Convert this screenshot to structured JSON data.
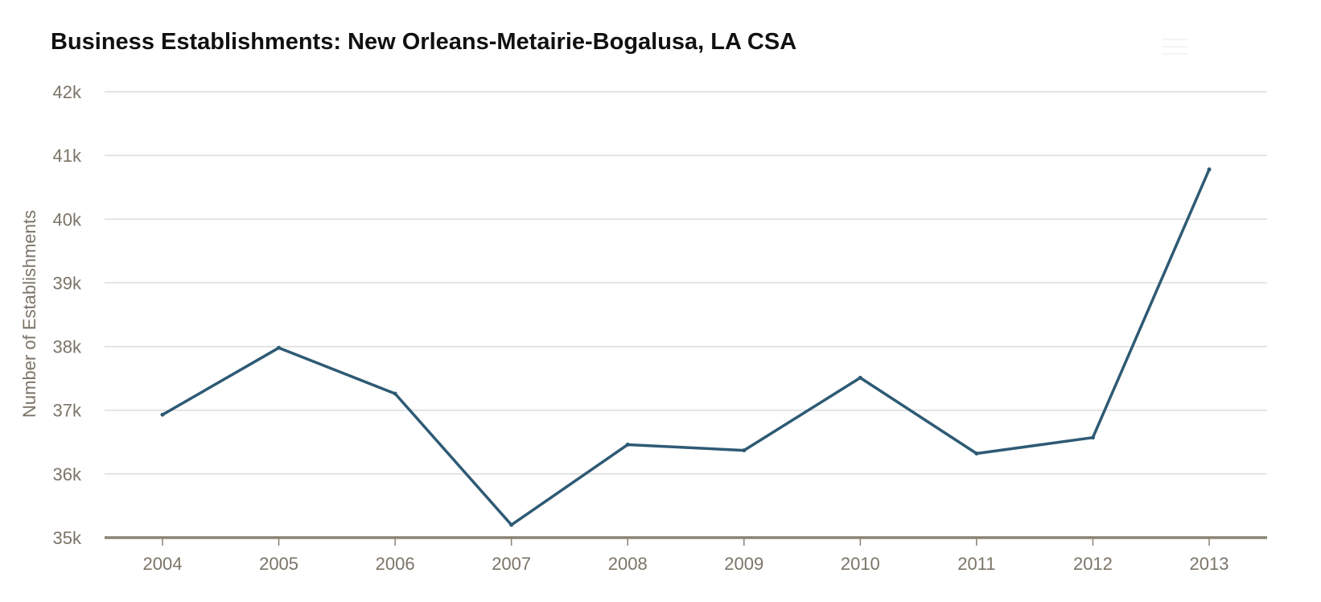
{
  "chart_data": {
    "type": "line",
    "title": "Business Establishments: New Orleans-Metairie-Bogalusa, LA CSA",
    "xlabel": "",
    "ylabel": "Number of Establishments",
    "x": [
      "2004",
      "2005",
      "2006",
      "2007",
      "2008",
      "2009",
      "2010",
      "2011",
      "2012",
      "2013"
    ],
    "series": [
      {
        "values": [
          36930,
          37980,
          37260,
          35200,
          36460,
          36370,
          37510,
          36320,
          36570,
          40780
        ]
      }
    ],
    "ylim": [
      35000,
      42000
    ],
    "yticks": [
      35000,
      36000,
      37000,
      38000,
      39000,
      40000,
      41000,
      42000
    ],
    "ytick_labels": [
      "35k",
      "36k",
      "37k",
      "38k",
      "39k",
      "40k",
      "41k",
      "42k"
    ],
    "grid": true,
    "legend": "none",
    "colors": {
      "line": "#2e5a74",
      "grid": "#dcdcdc",
      "baseline": "#8a8274",
      "tick_text": "#7b7468",
      "title_text": "#111111"
    }
  }
}
